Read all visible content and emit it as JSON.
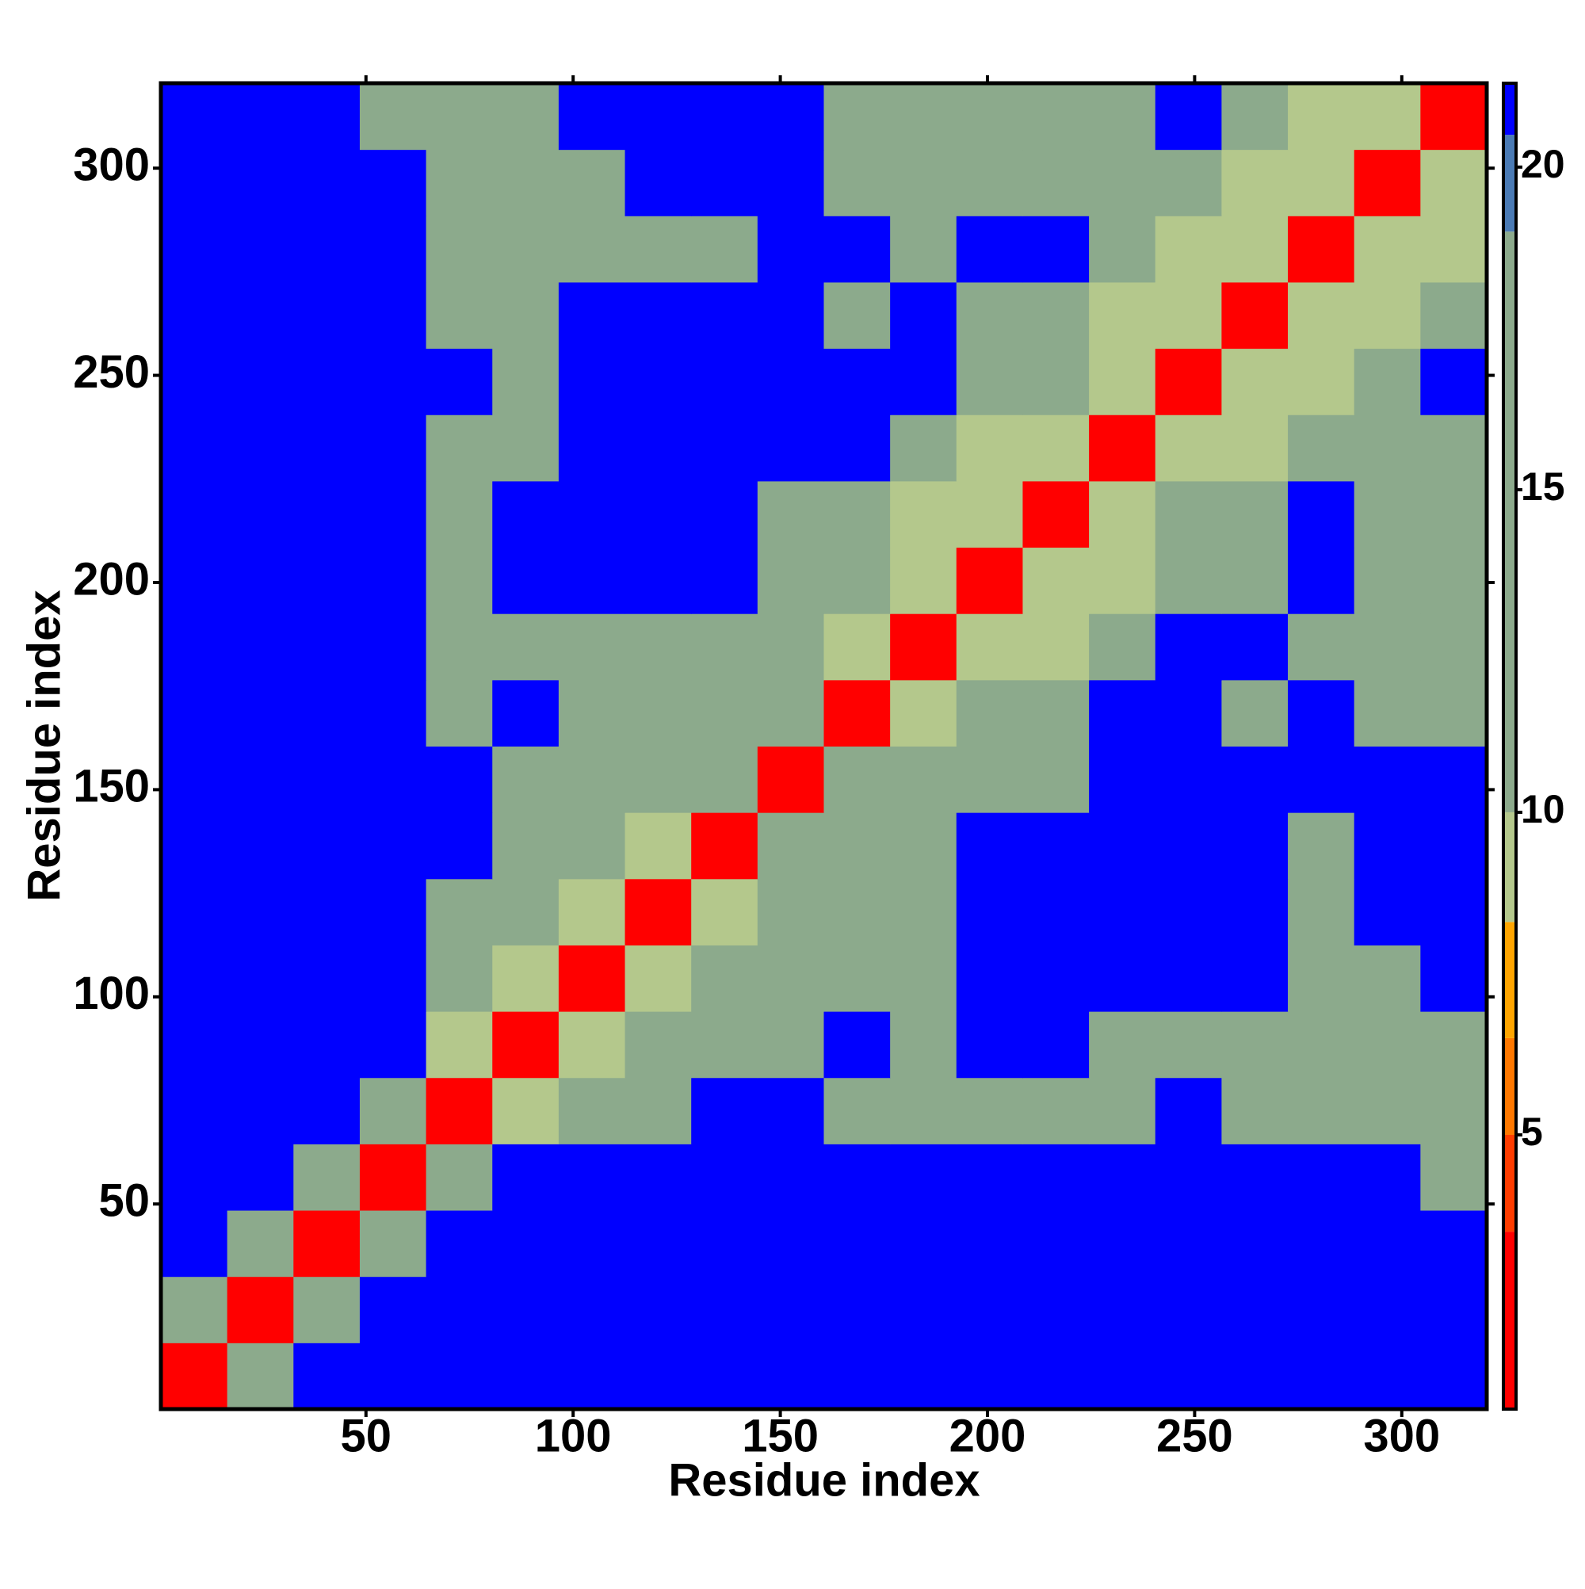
{
  "chart_data": {
    "type": "heatmap",
    "xlabel": "Residue index",
    "ylabel": "Residue index",
    "xbins": [
      0.5,
      16.5,
      32.5,
      48.5,
      64.5,
      80.5,
      96.5,
      112.5,
      128.5,
      144.5,
      160.5,
      176.5,
      192.5,
      208.5,
      224.5,
      240.5,
      256.5,
      272.5,
      288.5,
      304.5,
      320.5
    ],
    "ybins": [
      0.5,
      16.5,
      32.5,
      48.5,
      64.5,
      80.5,
      96.5,
      112.5,
      128.5,
      144.5,
      160.5,
      176.5,
      192.5,
      208.5,
      224.5,
      240.5,
      256.5,
      272.5,
      288.5,
      304.5,
      320.5
    ],
    "z": [
      [
        3,
        18,
        21,
        21,
        21,
        21,
        21,
        21,
        21,
        21,
        21,
        21,
        21,
        21,
        21,
        21,
        21,
        21,
        21,
        21
      ],
      [
        18,
        3,
        16,
        21,
        21,
        21,
        21,
        21,
        21,
        21,
        21,
        21,
        21,
        21,
        21,
        21,
        21,
        21,
        21,
        21
      ],
      [
        21,
        16,
        3,
        14,
        21,
        21,
        21,
        21,
        21,
        21,
        21,
        21,
        21,
        21,
        21,
        21,
        21,
        21,
        21,
        21
      ],
      [
        21,
        21,
        14,
        3,
        13,
        21,
        21,
        21,
        21,
        21,
        21,
        21,
        21,
        21,
        21,
        21,
        21,
        21,
        21,
        15
      ],
      [
        21,
        21,
        21,
        13,
        3,
        10,
        12,
        14,
        21,
        21,
        11,
        12,
        11,
        12,
        12,
        21,
        14,
        14,
        13,
        13
      ],
      [
        21,
        21,
        21,
        21,
        10,
        3,
        10,
        12,
        12,
        15,
        21,
        13,
        21,
        21,
        13,
        16,
        15,
        12,
        11,
        12
      ],
      [
        21,
        21,
        21,
        21,
        12,
        10,
        3,
        9,
        11,
        14,
        14,
        11,
        21,
        21,
        21,
        21,
        21,
        12,
        15,
        21
      ],
      [
        21,
        21,
        21,
        21,
        14,
        12,
        9,
        3,
        9,
        12,
        14,
        14,
        21,
        21,
        21,
        21,
        21,
        11,
        21,
        21
      ],
      [
        21,
        21,
        21,
        21,
        21,
        12,
        11,
        9,
        3,
        11,
        13,
        14,
        21,
        21,
        21,
        21,
        21,
        12,
        21,
        21
      ],
      [
        21,
        21,
        21,
        21,
        21,
        15,
        14,
        12,
        11,
        3,
        11,
        12,
        13,
        16,
        21,
        21,
        21,
        21,
        21,
        21
      ],
      [
        21,
        21,
        21,
        21,
        11,
        21,
        14,
        14,
        13,
        11,
        3,
        10,
        12,
        14,
        21,
        21,
        16,
        21,
        14,
        13
      ],
      [
        21,
        21,
        21,
        21,
        12,
        13,
        11,
        14,
        14,
        12,
        10,
        3,
        10,
        10,
        11,
        21,
        21,
        16,
        15,
        14
      ],
      [
        21,
        21,
        21,
        21,
        11,
        21,
        21,
        21,
        21,
        13,
        12,
        10,
        3,
        9,
        10,
        15,
        12,
        21,
        14,
        14
      ],
      [
        21,
        21,
        21,
        21,
        12,
        21,
        21,
        21,
        21,
        16,
        14,
        10,
        9,
        3,
        9,
        13,
        11,
        21,
        16,
        14
      ],
      [
        21,
        21,
        21,
        21,
        12,
        13,
        21,
        21,
        21,
        21,
        21,
        11,
        10,
        9,
        3,
        9,
        10,
        11,
        13,
        14
      ],
      [
        21,
        21,
        21,
        21,
        21,
        16,
        21,
        21,
        21,
        21,
        21,
        21,
        15,
        13,
        9,
        3,
        9,
        10,
        11,
        21
      ],
      [
        21,
        21,
        21,
        21,
        14,
        15,
        21,
        21,
        21,
        21,
        16,
        21,
        12,
        11,
        10,
        9,
        3,
        9,
        10,
        11
      ],
      [
        21,
        21,
        21,
        21,
        14,
        12,
        12,
        11,
        12,
        21,
        21,
        16,
        21,
        21,
        11,
        10,
        9,
        3,
        9,
        10
      ],
      [
        21,
        21,
        21,
        21,
        13,
        11,
        15,
        21,
        21,
        21,
        14,
        15,
        14,
        16,
        13,
        11,
        10,
        9,
        3,
        9
      ],
      [
        21,
        21,
        21,
        15,
        13,
        12,
        21,
        21,
        21,
        21,
        13,
        14,
        14,
        14,
        14,
        21,
        11,
        10,
        9,
        3
      ]
    ],
    "xlim": [
      0.5,
      320.5
    ],
    "ylim": [
      0.5,
      320.5
    ],
    "xticks": [
      50,
      100,
      150,
      200,
      250,
      300
    ],
    "yticks": [
      50,
      100,
      150,
      200,
      250,
      300
    ],
    "zlim": [
      0.75,
      21.3
    ],
    "zticks": [
      5,
      10,
      15,
      20
    ],
    "colorscale": [
      [
        3.5,
        "#ff0000"
      ],
      [
        5,
        "#ff3c00"
      ],
      [
        6.5,
        "#ff7800"
      ],
      [
        8.3,
        "#ffa500"
      ],
      [
        10,
        "#b4c88c"
      ],
      [
        19,
        "#8caa8c"
      ],
      [
        20.5,
        "#4a7ab4"
      ],
      [
        21.3,
        "#0000ff"
      ]
    ]
  }
}
